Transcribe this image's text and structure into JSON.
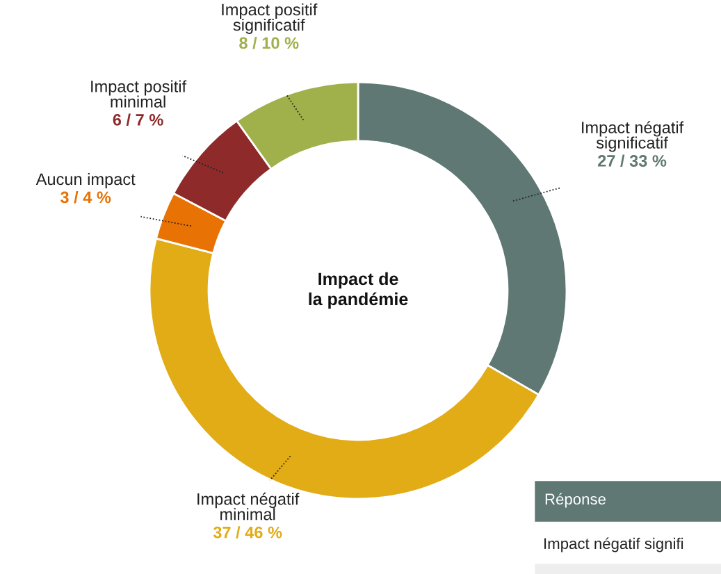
{
  "chart_data": {
    "type": "donut",
    "title": "Impact de la pandémie",
    "categories": [
      "Impact négatif significatif",
      "Impact négatif minimal",
      "Aucun impact",
      "Impact positif minimal",
      "Impact positif significatif"
    ],
    "values": [
      27,
      37,
      3,
      6,
      8
    ],
    "value_labels": [
      "27 / 33 %",
      "37 / 46 %",
      "3 / 4 %",
      "6 / 7 %",
      "8 / 10 %"
    ],
    "colors": [
      "#5f7873",
      "#e2ac17",
      "#e87204",
      "#8e2a2a",
      "#a0b04a"
    ],
    "annotations": [
      "Réponse",
      "Impact négatif signifi"
    ]
  }
}
